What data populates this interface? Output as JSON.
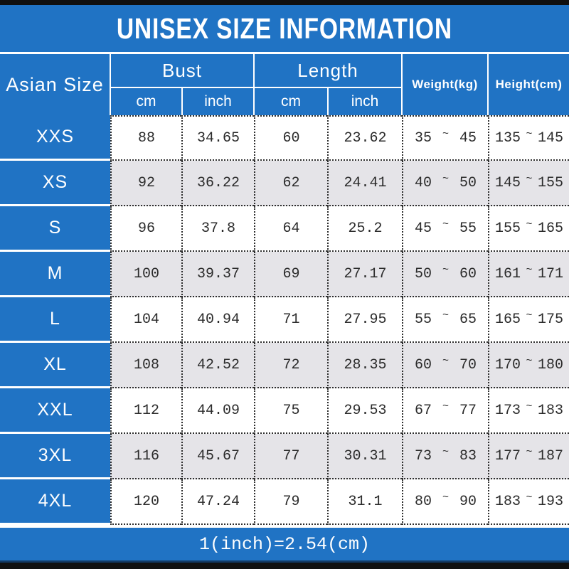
{
  "title": "UNISEX SIZE INFORMATION",
  "footer_note": "1(inch)=2.54(cm)",
  "colors": {
    "accent_blue": "#2073c4",
    "alt_row": "#e5e4e8",
    "bar_black": "#101010",
    "grid_dots": "#2e2e2e"
  },
  "table": {
    "size_col": "Asian Size",
    "groups": [
      {
        "label": "Bust",
        "sub": [
          "cm",
          "inch"
        ]
      },
      {
        "label": "Length",
        "sub": [
          "cm",
          "inch"
        ]
      }
    ],
    "weight_col": "Weight(kg)",
    "height_col": "Height(cm)",
    "range_separator": "~"
  },
  "chart_data": {
    "type": "table",
    "title": "UNISEX SIZE INFORMATION",
    "note": "1(inch)=2.54(cm)",
    "columns": [
      "Asian Size",
      "Bust cm",
      "Bust inch",
      "Length cm",
      "Length inch",
      "Weight(kg)",
      "Height(cm)"
    ],
    "rows": [
      [
        "XXS",
        "88",
        "34.65",
        "60",
        "23.62",
        "35 ~ 45",
        "135 ~ 145"
      ],
      [
        "XS",
        "92",
        "36.22",
        "62",
        "24.41",
        "40 ~ 50",
        "145 ~ 155"
      ],
      [
        "S",
        "96",
        "37.8",
        "64",
        "25.2",
        "45 ~ 55",
        "155 ~ 165"
      ],
      [
        "M",
        "100",
        "39.37",
        "69",
        "27.17",
        "50 ~ 60",
        "161 ~ 171"
      ],
      [
        "L",
        "104",
        "40.94",
        "71",
        "27.95",
        "55 ~ 65",
        "165 ~ 175"
      ],
      [
        "XL",
        "108",
        "42.52",
        "72",
        "28.35",
        "60 ~ 70",
        "170 ~ 180"
      ],
      [
        "XXL",
        "112",
        "44.09",
        "75",
        "29.53",
        "67 ~ 77",
        "173 ~ 183"
      ],
      [
        "3XL",
        "116",
        "45.67",
        "77",
        "30.31",
        "73 ~ 83",
        "177 ~ 187"
      ],
      [
        "4XL",
        "120",
        "47.24",
        "79",
        "31.1",
        "80 ~ 90",
        "183 ~ 193"
      ]
    ]
  }
}
